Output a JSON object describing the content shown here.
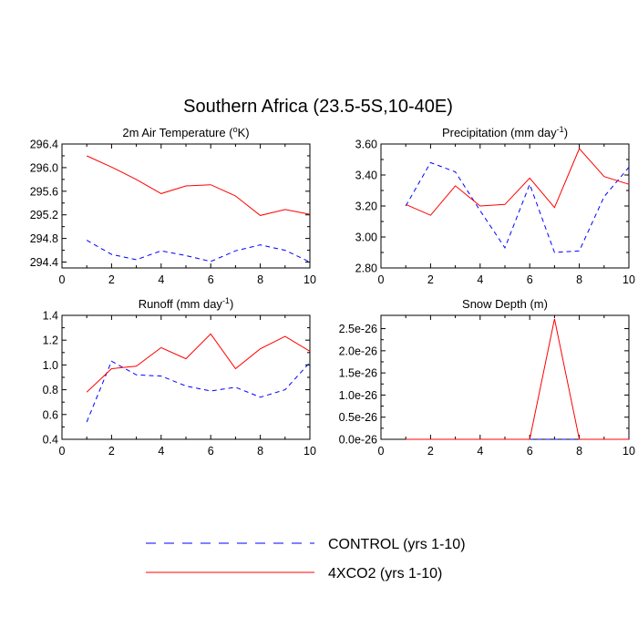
{
  "figure": {
    "title": "Southern Africa (23.5-5S,10-40E)"
  },
  "colors": {
    "control": "#0000ff",
    "xco2": "#ff0000",
    "axis": "#000000"
  },
  "legend": {
    "control_label": "CONTROL (yrs 1-10)",
    "xco2_label": "4XCO2 (yrs 1-10)"
  },
  "chart_data": [
    {
      "id": "temp",
      "type": "line",
      "title": "2m Air Temperature (",
      "title_sup": "o",
      "title_after": "K)",
      "xlim": [
        0,
        10
      ],
      "ylim": [
        294.3,
        296.4
      ],
      "xticks": [
        0,
        2,
        4,
        6,
        8,
        10
      ],
      "xtick_labels": [
        "0",
        "2",
        "4",
        "6",
        "8",
        "10"
      ],
      "yticks": [
        294.4,
        294.8,
        295.2,
        295.6,
        296.0,
        296.4
      ],
      "ytick_labels": [
        "294.4",
        "294.8",
        "295.2",
        "295.6",
        "296.0",
        "296.4"
      ],
      "x": [
        1,
        2,
        3,
        4,
        5,
        6,
        7,
        8,
        9,
        10
      ],
      "series": [
        {
          "name": "CONTROL (yrs 1-10)",
          "key": "control",
          "dashed": true,
          "values": [
            294.77,
            294.53,
            294.44,
            294.59,
            294.51,
            294.41,
            294.59,
            294.69,
            294.6,
            294.4
          ]
        },
        {
          "name": "4XCO2 (yrs 1-10)",
          "key": "xco2",
          "dashed": false,
          "values": [
            296.2,
            296.01,
            295.8,
            295.56,
            295.69,
            295.71,
            295.52,
            295.19,
            295.29,
            295.21
          ]
        }
      ]
    },
    {
      "id": "precip",
      "type": "line",
      "title": "Precipitation (mm day",
      "title_sup": "-1",
      "title_after": ")",
      "xlim": [
        0,
        10
      ],
      "ylim": [
        2.8,
        3.6
      ],
      "xticks": [
        0,
        2,
        4,
        6,
        8,
        10
      ],
      "xtick_labels": [
        "0",
        "2",
        "4",
        "6",
        "8",
        "10"
      ],
      "yticks": [
        2.8,
        3.0,
        3.2,
        3.4,
        3.6
      ],
      "ytick_labels": [
        "2.80",
        "3.00",
        "3.20",
        "3.40",
        "3.60"
      ],
      "x": [
        1,
        2,
        3,
        4,
        5,
        6,
        7,
        8,
        9,
        10
      ],
      "series": [
        {
          "name": "CONTROL (yrs 1-10)",
          "key": "control",
          "dashed": true,
          "values": [
            3.2,
            3.48,
            3.42,
            3.17,
            2.93,
            3.34,
            2.9,
            2.91,
            3.26,
            3.45
          ]
        },
        {
          "name": "4XCO2 (yrs 1-10)",
          "key": "xco2",
          "dashed": false,
          "values": [
            3.21,
            3.14,
            3.33,
            3.2,
            3.21,
            3.38,
            3.19,
            3.57,
            3.39,
            3.34
          ]
        }
      ]
    },
    {
      "id": "runoff",
      "type": "line",
      "title": "Runoff (mm day",
      "title_sup": "-1",
      "title_after": ")",
      "xlim": [
        0,
        10
      ],
      "ylim": [
        0.4,
        1.4
      ],
      "xticks": [
        0,
        2,
        4,
        6,
        8,
        10
      ],
      "xtick_labels": [
        "0",
        "2",
        "4",
        "6",
        "8",
        "10"
      ],
      "yticks": [
        0.4,
        0.6,
        0.8,
        1.0,
        1.2,
        1.4
      ],
      "ytick_labels": [
        "0.4",
        "0.6",
        "0.8",
        "1.0",
        "1.2",
        "1.4"
      ],
      "x": [
        1,
        2,
        3,
        4,
        5,
        6,
        7,
        8,
        9,
        10
      ],
      "series": [
        {
          "name": "CONTROL (yrs 1-10)",
          "key": "control",
          "dashed": true,
          "values": [
            0.54,
            1.03,
            0.92,
            0.91,
            0.83,
            0.79,
            0.82,
            0.74,
            0.8,
            1.02
          ]
        },
        {
          "name": "4XCO2 (yrs 1-10)",
          "key": "xco2",
          "dashed": false,
          "values": [
            0.78,
            0.97,
            0.99,
            1.14,
            1.05,
            1.25,
            0.97,
            1.13,
            1.23,
            1.11
          ]
        }
      ]
    },
    {
      "id": "snow",
      "type": "line",
      "title": "Snow Depth (m)",
      "title_sup": "",
      "title_after": "",
      "xlim": [
        0,
        10
      ],
      "ylim": [
        0,
        2.8e-26
      ],
      "xticks": [
        0,
        2,
        4,
        6,
        8,
        10
      ],
      "xtick_labels": [
        "0",
        "2",
        "4",
        "6",
        "8",
        "10"
      ],
      "yticks": [
        0,
        5e-27,
        1e-26,
        1.5e-26,
        2e-26,
        2.5e-26
      ],
      "ytick_labels": [
        "0.0e-26",
        "0.5e-26",
        "1.0e-26",
        "1.5e-26",
        "2.0e-26",
        "2.5e-26"
      ],
      "x": [
        1,
        2,
        3,
        4,
        5,
        6,
        7,
        8,
        9,
        10
      ],
      "series": [
        {
          "name": "CONTROL (yrs 1-10)",
          "key": "control",
          "dashed": true,
          "values": [
            0,
            0,
            0,
            0,
            0,
            0,
            0,
            0,
            0,
            0
          ]
        },
        {
          "name": "4XCO2 (yrs 1-10)",
          "key": "xco2",
          "dashed": false,
          "values": [
            0,
            0,
            0,
            0,
            0,
            0,
            2.72e-26,
            0,
            0,
            0
          ]
        }
      ]
    }
  ]
}
